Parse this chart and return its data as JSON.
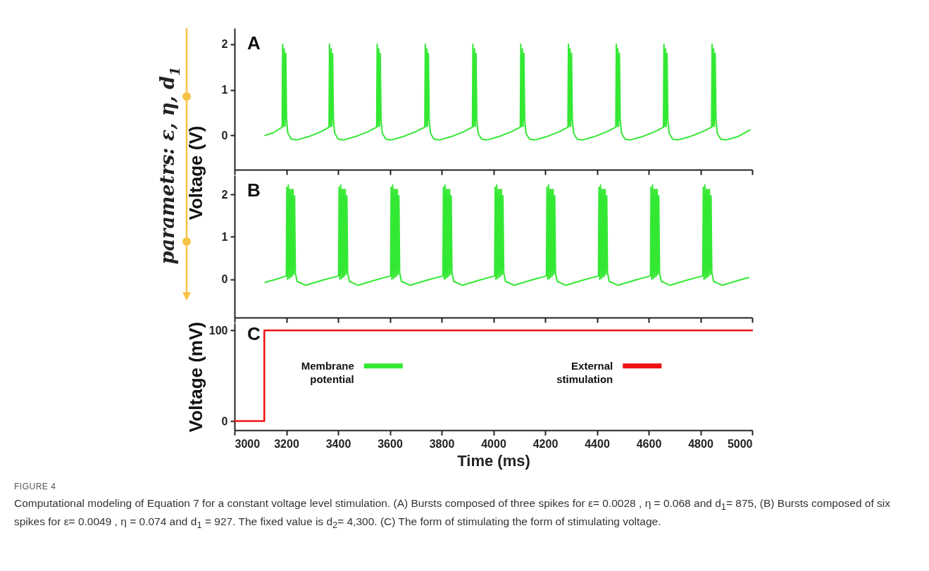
{
  "chart_data": [
    {
      "type": "line",
      "ylabel": "Voltage  (V)",
      "xlim": [
        3000,
        5000
      ],
      "ylim": [
        -0.75,
        2.35
      ],
      "xticks": [
        3000,
        3200,
        3400,
        3600,
        3800,
        4000,
        4200,
        4400,
        4600,
        4800,
        5000
      ],
      "yticks": [
        0,
        1,
        2
      ],
      "tick_labels": "y",
      "annotations": [
        "A",
        "parametrs:  ε, η, d$_{1}$"
      ],
      "series": [
        {
          "name": "Membrane potential",
          "color": "#33e833",
          "x": [
            3118,
            3150,
            3184,
            3186,
            3189,
            3192,
            3195,
            3198,
            3201,
            3206,
            3219,
            3239,
            3284,
            3334,
            3365,
            3367,
            3370,
            3373,
            3376,
            3379,
            3382,
            3387,
            3400,
            3420,
            3465,
            3515,
            3549,
            3551,
            3554,
            3557,
            3560,
            3563,
            3566,
            3571,
            3584,
            3604,
            3649,
            3699,
            3735,
            3737,
            3740,
            3743,
            3746,
            3749,
            3752,
            3757,
            3770,
            3790,
            3835,
            3885,
            3919,
            3921,
            3924,
            3927,
            3930,
            3933,
            3936,
            3941,
            3954,
            3974,
            4019,
            4069,
            4104,
            4106,
            4109,
            4112,
            4115,
            4118,
            4121,
            4126,
            4139,
            4159,
            4204,
            4254,
            4288,
            4290,
            4293,
            4296,
            4299,
            4302,
            4305,
            4310,
            4323,
            4343,
            4388,
            4438,
            4473,
            4475,
            4478,
            4481,
            4484,
            4487,
            4490,
            4495,
            4508,
            4528,
            4573,
            4623,
            4657,
            4659,
            4662,
            4665,
            4668,
            4671,
            4674,
            4679,
            4692,
            4712,
            4757,
            4807,
            4843,
            4845,
            4848,
            4851,
            4854,
            4857,
            4860,
            4865,
            4878,
            4898,
            4943,
            4991
          ],
          "values": [
            0.0,
            0.06,
            0.18,
            2.0,
            0.2,
            1.9,
            0.2,
            1.8,
            0.35,
            0.05,
            -0.08,
            -0.1,
            -0.03,
            0.08,
            0.18,
            2.0,
            0.2,
            1.9,
            0.2,
            1.8,
            0.35,
            0.05,
            -0.08,
            -0.1,
            -0.03,
            0.08,
            0.18,
            2.0,
            0.2,
            1.9,
            0.2,
            1.8,
            0.35,
            0.05,
            -0.08,
            -0.1,
            -0.03,
            0.08,
            0.18,
            2.0,
            0.2,
            1.9,
            0.2,
            1.8,
            0.35,
            0.05,
            -0.08,
            -0.1,
            -0.03,
            0.08,
            0.18,
            2.0,
            0.2,
            1.9,
            0.2,
            1.8,
            0.35,
            0.05,
            -0.08,
            -0.1,
            -0.03,
            0.08,
            0.18,
            2.0,
            0.2,
            1.9,
            0.2,
            1.8,
            0.35,
            0.05,
            -0.08,
            -0.1,
            -0.03,
            0.08,
            0.18,
            2.0,
            0.2,
            1.9,
            0.2,
            1.8,
            0.35,
            0.05,
            -0.08,
            -0.1,
            -0.03,
            0.08,
            0.18,
            2.0,
            0.2,
            1.9,
            0.2,
            1.8,
            0.35,
            0.05,
            -0.08,
            -0.1,
            -0.03,
            0.08,
            0.18,
            2.0,
            0.2,
            1.9,
            0.2,
            1.8,
            0.35,
            0.05,
            -0.08,
            -0.1,
            -0.03,
            0.08,
            0.18,
            2.0,
            0.2,
            1.9,
            0.2,
            1.8,
            0.35,
            0.05,
            -0.08,
            -0.1,
            -0.03,
            0.12
          ]
        }
      ]
    },
    {
      "type": "line",
      "xlim": [
        3000,
        5000
      ],
      "ylim": [
        -0.9,
        2.45
      ],
      "xticks": [
        3000,
        3200,
        3400,
        3600,
        3800,
        4000,
        4200,
        4400,
        4600,
        4800,
        5000
      ],
      "yticks": [
        0,
        1,
        2
      ],
      "tick_labels": "y",
      "annotations": [
        "B"
      ],
      "series": [
        {
          "name": "Membrane potential",
          "color": "#33e833",
          "x": [
            3118,
            3160,
            3200,
            3202,
            3205,
            3208,
            3211,
            3214,
            3217,
            3220,
            3223,
            3226,
            3229,
            3232,
            3235,
            3242,
            3275,
            3340,
            3402,
            3404,
            3407,
            3410,
            3413,
            3416,
            3419,
            3422,
            3425,
            3428,
            3431,
            3434,
            3437,
            3444,
            3477,
            3542,
            3603,
            3605,
            3608,
            3611,
            3614,
            3617,
            3620,
            3623,
            3626,
            3629,
            3632,
            3635,
            3638,
            3645,
            3678,
            3743,
            3805,
            3807,
            3810,
            3813,
            3816,
            3819,
            3822,
            3825,
            3828,
            3831,
            3834,
            3837,
            3840,
            3847,
            3880,
            3945,
            4005,
            4007,
            4010,
            4013,
            4016,
            4019,
            4022,
            4025,
            4028,
            4031,
            4034,
            4037,
            4040,
            4047,
            4080,
            4145,
            4205,
            4207,
            4210,
            4213,
            4216,
            4219,
            4222,
            4225,
            4228,
            4231,
            4234,
            4237,
            4240,
            4247,
            4280,
            4345,
            4406,
            4408,
            4411,
            4414,
            4417,
            4420,
            4423,
            4426,
            4429,
            4432,
            4435,
            4438,
            4441,
            4448,
            4481,
            4546,
            4607,
            4609,
            4612,
            4615,
            4618,
            4621,
            4624,
            4627,
            4630,
            4633,
            4636,
            4639,
            4642,
            4649,
            4682,
            4747,
            4809,
            4811,
            4814,
            4817,
            4820,
            4823,
            4826,
            4829,
            4832,
            4835,
            4838,
            4841,
            4844,
            4851,
            4884,
            4949,
            4986
          ],
          "values": [
            -0.07,
            0.0,
            0.08,
            2.17,
            0.0,
            2.22,
            0.02,
            2.12,
            0.05,
            2.12,
            0.08,
            2.12,
            0.12,
            1.97,
            0.15,
            -0.05,
            -0.14,
            -0.02,
            0.08,
            2.17,
            0.0,
            2.22,
            0.02,
            2.12,
            0.05,
            2.12,
            0.08,
            2.12,
            0.12,
            1.97,
            0.15,
            -0.05,
            -0.14,
            -0.02,
            0.08,
            2.17,
            0.0,
            2.22,
            0.02,
            2.12,
            0.05,
            2.12,
            0.08,
            2.12,
            0.12,
            1.97,
            0.15,
            -0.05,
            -0.14,
            -0.02,
            0.08,
            2.17,
            0.0,
            2.22,
            0.02,
            2.12,
            0.05,
            2.12,
            0.08,
            2.12,
            0.12,
            1.97,
            0.15,
            -0.05,
            -0.14,
            -0.02,
            0.08,
            2.17,
            0.0,
            2.22,
            0.02,
            2.12,
            0.05,
            2.12,
            0.08,
            2.12,
            0.12,
            1.97,
            0.15,
            -0.05,
            -0.14,
            -0.02,
            0.08,
            2.17,
            0.0,
            2.22,
            0.02,
            2.12,
            0.05,
            2.12,
            0.08,
            2.12,
            0.12,
            1.97,
            0.15,
            -0.05,
            -0.14,
            -0.02,
            0.08,
            2.17,
            0.0,
            2.22,
            0.02,
            2.12,
            0.05,
            2.12,
            0.08,
            2.12,
            0.12,
            1.97,
            0.15,
            -0.05,
            -0.14,
            -0.02,
            0.08,
            2.17,
            0.0,
            2.22,
            0.02,
            2.12,
            0.05,
            2.12,
            0.08,
            2.12,
            0.12,
            1.97,
            0.15,
            -0.05,
            -0.14,
            -0.02,
            0.08,
            2.17,
            0.0,
            2.22,
            0.02,
            2.12,
            0.05,
            2.12,
            0.08,
            2.12,
            0.12,
            1.97,
            0.15,
            -0.05,
            -0.14,
            -0.02,
            0.04
          ]
        }
      ]
    },
    {
      "type": "step",
      "xlabel": "Time (ms)",
      "ylabel": "Voltage  (mV)",
      "xlim": [
        3000,
        5000
      ],
      "ylim": [
        -10,
        108
      ],
      "xticks": [
        3000,
        3200,
        3400,
        3600,
        3800,
        4000,
        4200,
        4400,
        4600,
        4800,
        5000
      ],
      "yticks": [
        0,
        100
      ],
      "legend": "top",
      "annotations": [
        "C",
        "FIGURE 4",
        "Computational modeling of Equation 7 for a constant voltage level stimulation. (A) Bursts composed of three spikes for ε= 0.0028 , η = 0.068 and d$_{1}$= 875, (B) Bursts composed of six spikes for ε= 0.0049 , η = 0.074 and d$_{1}$ = 927. The fixed value is d$_{2}$= 4,300. (C) The form of stimulating the form of stimulating voltage."
      ],
      "x": [
        3000,
        3115,
        5000
      ],
      "series": [
        {
          "name": "External stimulation",
          "color": "#ee1111",
          "values": [
            0,
            100,
            100
          ]
        }
      ]
    }
  ]
}
